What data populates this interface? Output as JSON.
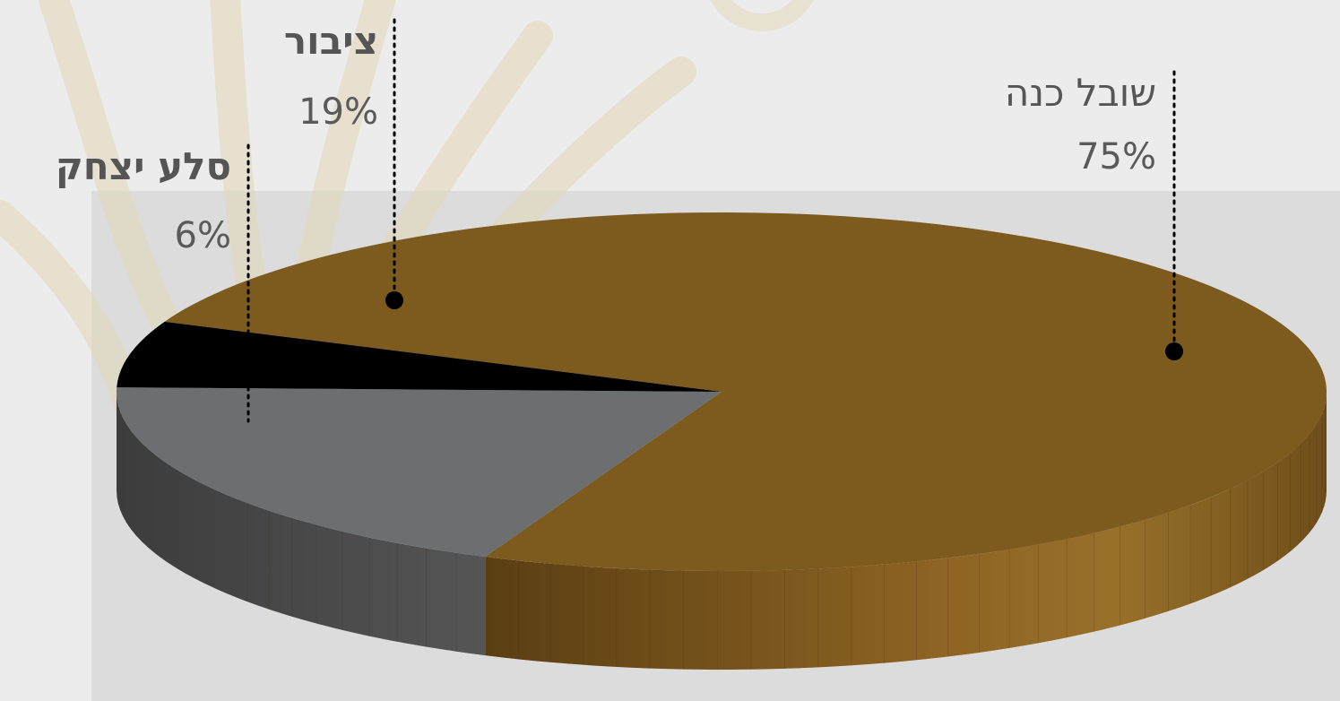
{
  "chart_data": {
    "type": "pie",
    "title": "",
    "slices": [
      {
        "name": "שובל כנה",
        "value": 75,
        "value_label": "75%",
        "color": "#7d5a1e"
      },
      {
        "name": "ציבור",
        "value": 19,
        "value_label": "19%",
        "color": "#6d6e70"
      },
      {
        "name": "סלע יצחק",
        "value": 6,
        "value_label": "6%",
        "color": "#000000"
      }
    ],
    "style": "3d",
    "legend": "none"
  }
}
